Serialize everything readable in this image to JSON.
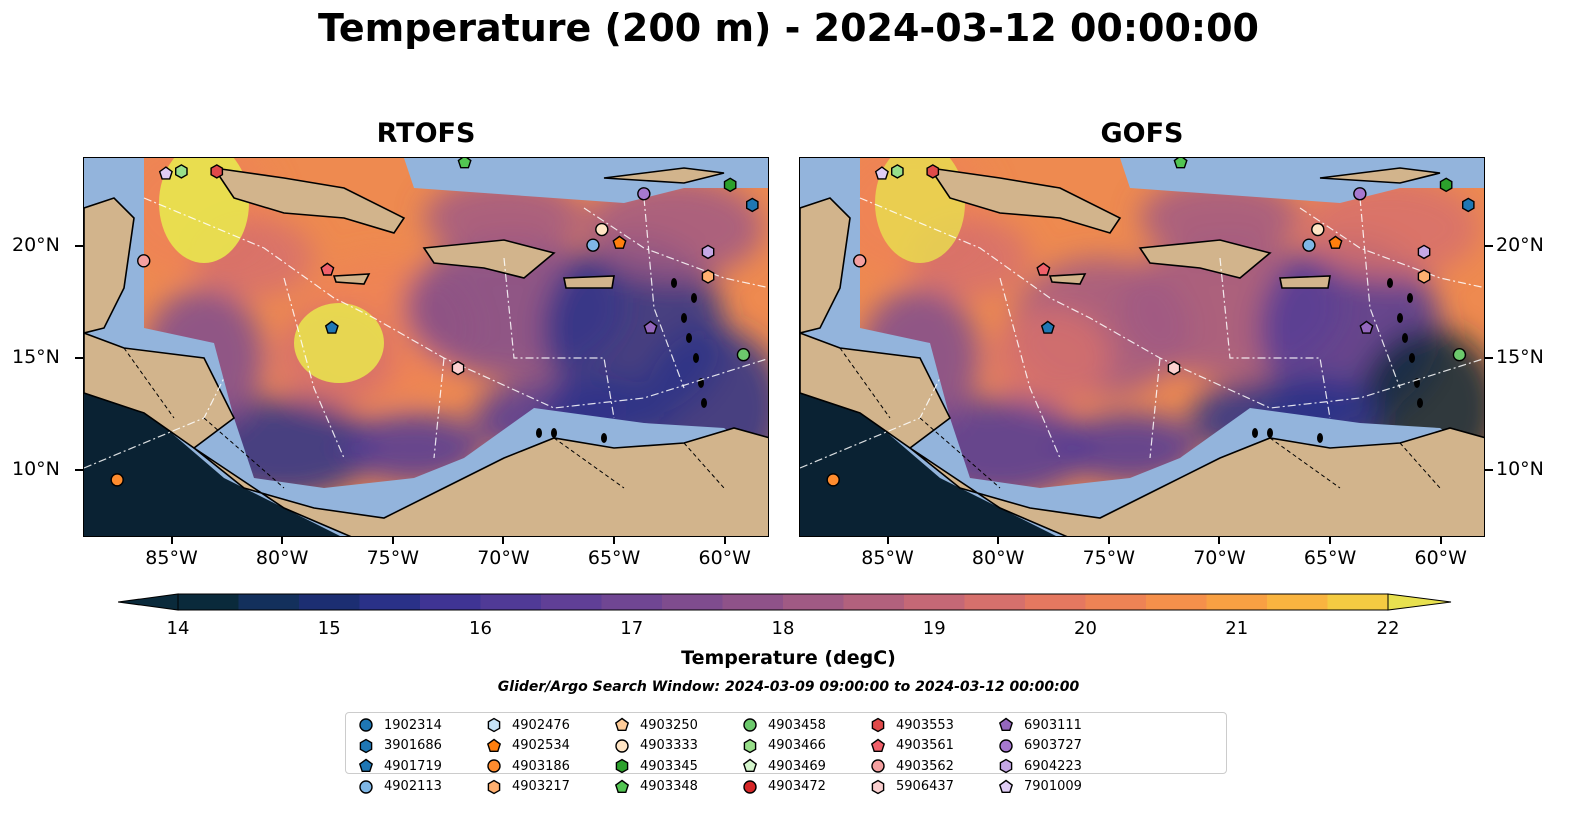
{
  "title": "Temperature (200 m) - 2024-03-12 00:00:00",
  "panels": [
    {
      "title": "RTOFS"
    },
    {
      "title": "GOFS"
    }
  ],
  "lon_ticks": [
    "85°W",
    "80°W",
    "75°W",
    "70°W",
    "65°W",
    "60°W"
  ],
  "lat_ticks": [
    "20°N",
    "15°N",
    "10°N"
  ],
  "colorbar": {
    "label": "Temperature (degC)",
    "ticks": [
      "14",
      "15",
      "16",
      "17",
      "18",
      "19",
      "20",
      "21",
      "22"
    ],
    "min": 14,
    "max": 22,
    "extend": "both",
    "colors": [
      "#0a2a3b",
      "#13305c",
      "#1c2e72",
      "#2a3188",
      "#3f3494",
      "#503a96",
      "#603f96",
      "#704693",
      "#7f4c8e",
      "#8f5289",
      "#a05a84",
      "#b2617d",
      "#c56876",
      "#d6706c",
      "#e57860",
      "#ee8355",
      "#f5904b",
      "#f8a043",
      "#f9b440",
      "#f4cb42",
      "#e8e14f"
    ]
  },
  "search_window": "Glider/Argo Search Window: 2024-03-09 09:00:00 to 2024-03-12 00:00:00",
  "chart_data": {
    "type": "heatmap",
    "title": "Temperature (200 m) - 2024-03-12 00:00:00",
    "variable": "Temperature (degC)",
    "depth": "200 m",
    "models": [
      "RTOFS",
      "GOFS"
    ],
    "xlabel": "",
    "ylabel": "",
    "xlim": [
      -89,
      -58
    ],
    "ylim": [
      7,
      24
    ],
    "clim": [
      14,
      22
    ],
    "floats": [
      {
        "id": "1902314",
        "marker": "circle",
        "color": "#1f77b4"
      },
      {
        "id": "3901686",
        "marker": "hexagon",
        "color": "#1f77b4",
        "lon": -58.8,
        "lat": 21.9
      },
      {
        "id": "4901719",
        "marker": "pentagon",
        "color": "#1f77b4",
        "lon": -77.8,
        "lat": 16.4
      },
      {
        "id": "4902113",
        "marker": "circle",
        "color": "#7fb7e6",
        "lon": -66.0,
        "lat": 20.1
      },
      {
        "id": "4902476",
        "marker": "hexagon",
        "color": "#c6e3f7"
      },
      {
        "id": "4902534",
        "marker": "pentagon",
        "color": "#ff7f0e",
        "lon": -64.8,
        "lat": 20.2
      },
      {
        "id": "4903186",
        "marker": "circle",
        "color": "#ff8c2e",
        "lon": -87.5,
        "lat": 9.6
      },
      {
        "id": "4903217",
        "marker": "hexagon",
        "color": "#ffb070",
        "lon": -60.8,
        "lat": 18.7
      },
      {
        "id": "4903250",
        "marker": "pentagon",
        "color": "#ffcc99"
      },
      {
        "id": "4903333",
        "marker": "circle",
        "color": "#ffe4c4",
        "lon": -65.6,
        "lat": 20.8
      },
      {
        "id": "4903345",
        "marker": "hexagon",
        "color": "#2ca02c",
        "lon": -59.8,
        "lat": 22.8
      },
      {
        "id": "4903348",
        "marker": "pentagon",
        "color": "#52c552",
        "lon": -71.8,
        "lat": 23.8
      },
      {
        "id": "4903458",
        "marker": "circle",
        "color": "#6cc96c",
        "lon": -59.2,
        "lat": 15.2
      },
      {
        "id": "4903466",
        "marker": "hexagon",
        "color": "#98df8a",
        "lon": -84.6,
        "lat": 23.4
      },
      {
        "id": "4903469",
        "marker": "pentagon",
        "color": "#d4f5cc"
      },
      {
        "id": "4903472",
        "marker": "circle",
        "color": "#d62728"
      },
      {
        "id": "4903553",
        "marker": "hexagon",
        "color": "#e04a4a",
        "lon": -83.0,
        "lat": 23.4
      },
      {
        "id": "4903561",
        "marker": "pentagon",
        "color": "#f0606a",
        "lon": -78.0,
        "lat": 19.0
      },
      {
        "id": "4903562",
        "marker": "circle",
        "color": "#f4a0a0",
        "lon": -86.3,
        "lat": 19.4
      },
      {
        "id": "5906437",
        "marker": "hexagon",
        "color": "#fbd0d0",
        "lon": -72.1,
        "lat": 14.6
      },
      {
        "id": "6903111",
        "marker": "pentagon",
        "color": "#9467bd",
        "lon": -63.4,
        "lat": 16.4
      },
      {
        "id": "6903727",
        "marker": "circle",
        "color": "#a678cf",
        "lon": -63.7,
        "lat": 22.4
      },
      {
        "id": "6904223",
        "marker": "hexagon",
        "color": "#c5a8e6",
        "lon": -60.8,
        "lat": 19.8
      },
      {
        "id": "7901009",
        "marker": "pentagon",
        "color": "#e0cdf5",
        "lon": -85.3,
        "lat": 23.3
      }
    ]
  }
}
